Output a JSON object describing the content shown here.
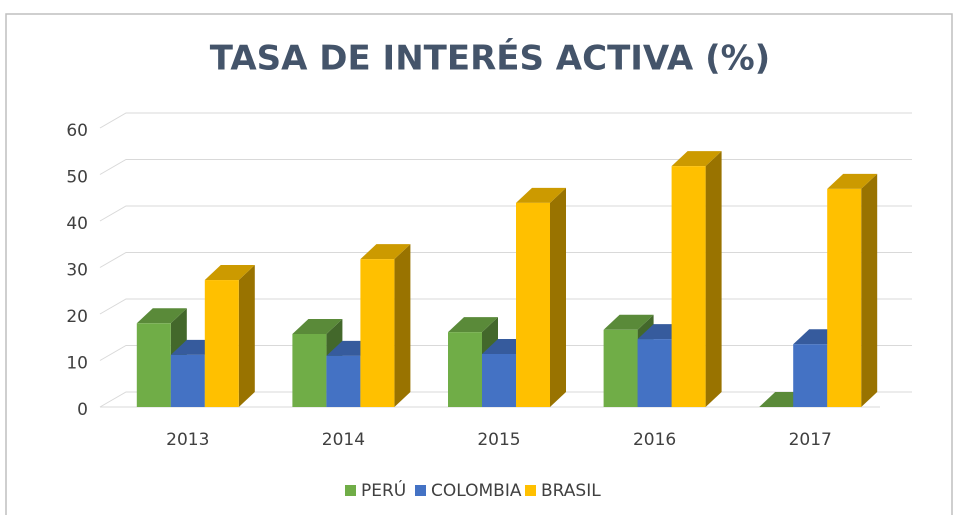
{
  "chart_data": {
    "type": "bar3d",
    "title": "TASA DE INTERÉS ACTIVA (%)",
    "categories": [
      "2013",
      "2014",
      "2015",
      "2016",
      "2017"
    ],
    "series": [
      {
        "name": "PERÚ",
        "color": "#70ad47",
        "values": [
          18,
          15.7,
          16.1,
          16.6,
          0
        ]
      },
      {
        "name": "COLOMBIA",
        "color": "#4472c4",
        "values": [
          11.2,
          11,
          11.4,
          14.6,
          13.5
        ]
      },
      {
        "name": "BRASIL",
        "color": "#ffc000",
        "values": [
          27.3,
          31.8,
          43.9,
          51.8,
          46.9
        ]
      }
    ],
    "ylim": [
      0,
      60
    ],
    "yticks": [
      0,
      10,
      20,
      30,
      40,
      50,
      60
    ],
    "grid": true,
    "legend": "bottom"
  }
}
